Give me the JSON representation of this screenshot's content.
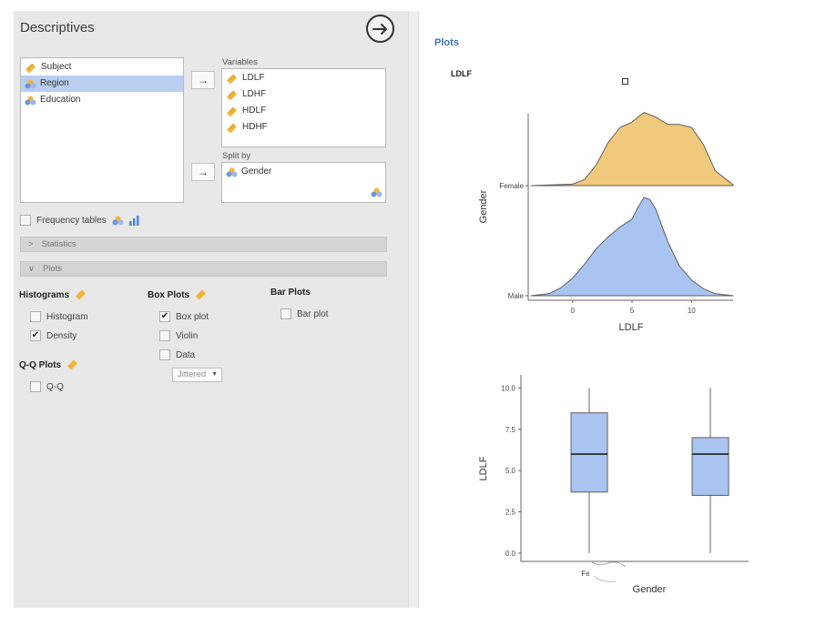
{
  "panel": {
    "title": "Descriptives",
    "run_icon": "arrow-circle-right-icon"
  },
  "source_list": {
    "items": [
      {
        "label": "Subject",
        "icon": "ruler-icon",
        "selected": false
      },
      {
        "label": "Region",
        "icon": "nominal-icon",
        "selected": true
      },
      {
        "label": "Education",
        "icon": "nominal-icon",
        "selected": false
      }
    ]
  },
  "variables": {
    "label": "Variables",
    "items": [
      {
        "label": "LDLF",
        "icon": "ruler-icon"
      },
      {
        "label": "LDHF",
        "icon": "ruler-icon"
      },
      {
        "label": "HDLF",
        "icon": "ruler-icon"
      },
      {
        "label": "HDHF",
        "icon": "ruler-icon"
      }
    ]
  },
  "split_by": {
    "label": "Split by",
    "items": [
      {
        "label": "Gender",
        "icon": "nominal-icon"
      }
    ]
  },
  "arrow_symbol": "→",
  "frequency_tables": {
    "label": "Frequency tables",
    "checked": false
  },
  "sections": [
    {
      "label": "Statistics",
      "chevron": ">",
      "expanded": false
    },
    {
      "label": "Plots",
      "chevron": "∨",
      "expanded": true
    }
  ],
  "histograms": {
    "title": "Histograms",
    "options": [
      {
        "label": "Histogram",
        "checked": false
      },
      {
        "label": "Density",
        "checked": true
      }
    ]
  },
  "boxplots": {
    "title": "Box Plots",
    "options": [
      {
        "label": "Box plot",
        "checked": true
      },
      {
        "label": "Violin",
        "checked": false
      },
      {
        "label": "Data",
        "checked": false
      }
    ],
    "data_mode": "Jittered"
  },
  "barplots": {
    "title": "Bar Plots",
    "options": [
      {
        "label": "Bar plot",
        "checked": false
      }
    ]
  },
  "qq": {
    "title": "Q-Q Plots",
    "options": [
      {
        "label": "Q-Q",
        "checked": false
      }
    ]
  },
  "results": {
    "heading": "Plots",
    "subheading": "LDLF"
  },
  "colors": {
    "female": "#f1c97c",
    "male": "#a9c4f0",
    "accent": "#3e6fb4",
    "box": "#a9c4f0"
  },
  "chart_data": [
    {
      "type": "area",
      "subtype": "ridgeline-density",
      "xlabel": "LDLF",
      "ylabel": "Gender",
      "x_ticks": [
        0,
        5,
        10
      ],
      "xlim": [
        -3.5,
        13.5
      ],
      "categories": [
        "Female",
        "Male"
      ],
      "series": [
        {
          "name": "Female",
          "color": "#f1c97c",
          "x": [
            -3.5,
            0,
            1,
            2,
            3,
            4,
            5,
            5.5,
            6,
            7,
            8,
            9,
            10,
            11,
            12,
            13.5
          ],
          "density": [
            0,
            0.02,
            0.08,
            0.28,
            0.58,
            0.78,
            0.85,
            0.92,
            0.98,
            0.92,
            0.82,
            0.82,
            0.78,
            0.55,
            0.2,
            0.01
          ]
        },
        {
          "name": "Male",
          "color": "#a9c4f0",
          "x": [
            -3.5,
            -2,
            -1,
            0,
            1,
            2,
            3,
            4,
            5,
            5.5,
            6,
            6.5,
            7,
            8,
            9,
            10,
            11,
            12,
            13.5
          ],
          "density": [
            0,
            0.02,
            0.08,
            0.18,
            0.32,
            0.48,
            0.6,
            0.7,
            0.78,
            0.9,
            1.0,
            0.98,
            0.88,
            0.55,
            0.3,
            0.16,
            0.07,
            0.02,
            0
          ]
        }
      ]
    },
    {
      "type": "box",
      "xlabel": "Gender",
      "ylabel": "LDLF",
      "ylim": [
        -0.5,
        10.8
      ],
      "y_ticks": [
        0.0,
        2.5,
        5.0,
        7.5,
        10.0
      ],
      "y_tick_labels": [
        "0.0",
        "2.5",
        "5.0",
        "7.5",
        "10.0"
      ],
      "x_tick_labels": [
        "Fe",
        ""
      ],
      "boxes": [
        {
          "min": 0.0,
          "q1": 3.7,
          "median": 6.0,
          "q3": 8.5,
          "max": 10.0
        },
        {
          "min": 0.0,
          "q1": 3.5,
          "median": 6.0,
          "q3": 7.0,
          "max": 10.0
        }
      ]
    }
  ]
}
